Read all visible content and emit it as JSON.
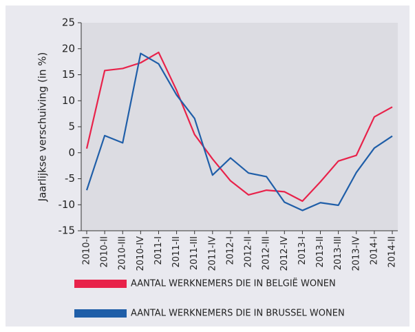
{
  "chart_data": {
    "type": "line",
    "y_label": "Jaarlijkse  verschuiving (in %)",
    "categories": [
      "2010-I",
      "2010-II",
      "2010-III",
      "2010-IV",
      "2011-I",
      "2011-II",
      "2011-III",
      "2011-IV",
      "2012-I",
      "2012-II",
      "2012-III",
      "2012-IV",
      "2013-I",
      "2013-II",
      "2013-III",
      "2013-IV",
      "2014-I",
      "2014-II"
    ],
    "series": [
      {
        "name": "AANTAL WERKNEMERS DIE IN BELGIË WONEN",
        "color": "#e8224a",
        "values": [
          0.8,
          15.8,
          16.2,
          17.3,
          19.3,
          12,
          3.5,
          -1.2,
          -5.4,
          -8.1,
          -7.2,
          -7.5,
          -9.3,
          -5.6,
          -1.6,
          -0.5,
          6.9,
          8.8
        ]
      },
      {
        "name": "AANTAL WERKNEMERS DIE IN BRUSSEL WONEN",
        "color": "#1f5ea8",
        "values": [
          -7.2,
          3.3,
          1.9,
          19.1,
          17.1,
          11.1,
          6.6,
          -4.3,
          -1.0,
          -3.9,
          -4.6,
          -9.5,
          -11.1,
          -9.6,
          -10.1,
          -3.8,
          0.9,
          3.2
        ]
      }
    ],
    "ylim": [
      -15,
      25
    ],
    "yticks": [
      -15,
      -10,
      -5,
      0,
      5,
      10,
      15,
      20,
      25
    ],
    "grid": false
  }
}
